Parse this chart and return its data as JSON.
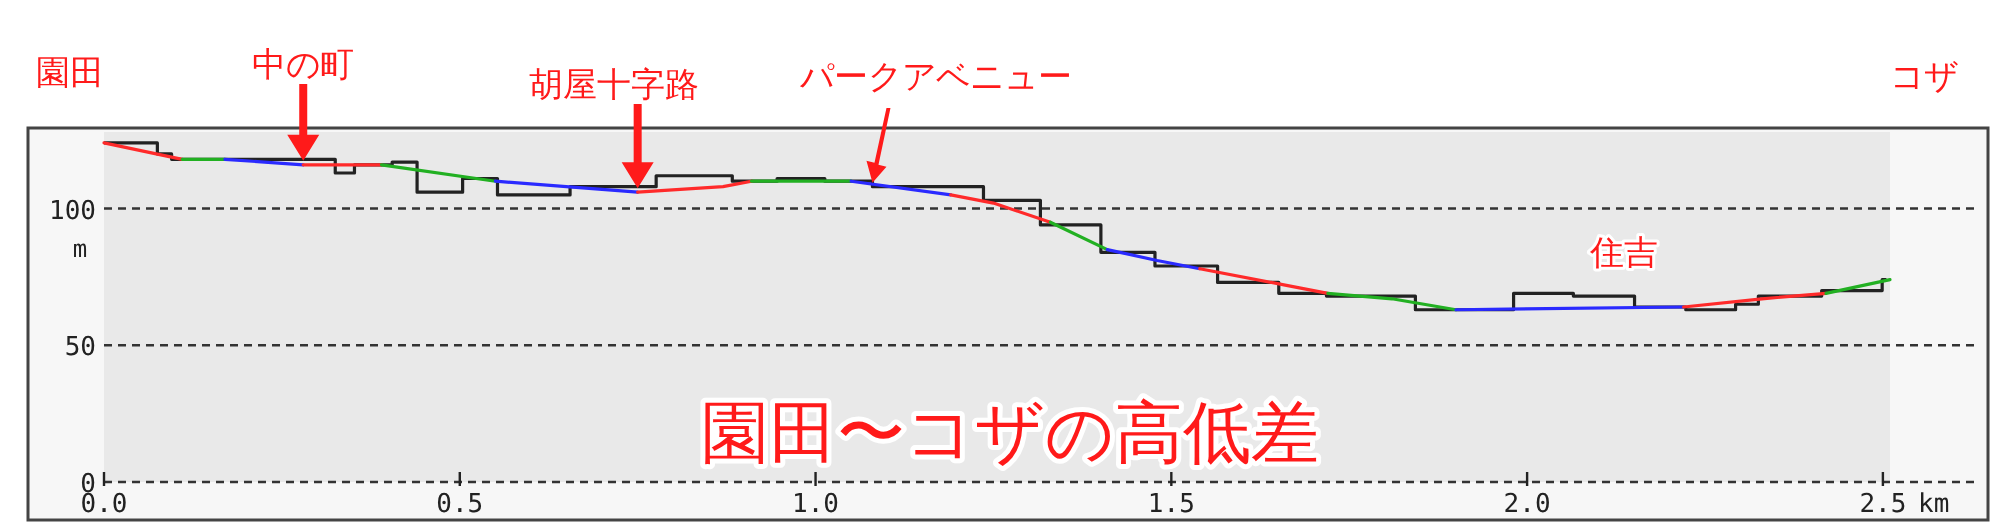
{
  "chart_data": {
    "type": "line",
    "title": "園田〜コザの高低差",
    "xlabel": "km",
    "ylabel": "m",
    "xlim": [
      0,
      2.51
    ],
    "ylim": [
      0,
      128
    ],
    "xticks": [
      {
        "value": 0,
        "label": "0.0"
      },
      {
        "value": 0.5,
        "label": "0.5"
      },
      {
        "value": 1,
        "label": "1.0"
      },
      {
        "value": 1.5,
        "label": "1.5"
      },
      {
        "value": 2,
        "label": "2.0"
      },
      {
        "value": 2.5,
        "label": "2.5"
      }
    ],
    "yticks": [
      0,
      50,
      100
    ],
    "grid": "y",
    "annotations": [
      "園田",
      {
        "text": "中の町",
        "x": 0.28,
        "y": 116
      },
      {
        "text": "胡屋十字路",
        "x": 0.75,
        "y": 106
      },
      {
        "text": "パークアベニュー",
        "x": 1.08,
        "y": 108
      },
      "住吉",
      "コザ"
    ],
    "series": [
      {
        "type": "step",
        "color": "#222222",
        "x": [
          0,
          0.075,
          0.095,
          0.325,
          0.352,
          0.405,
          0.44,
          0.504,
          0.553,
          0.655,
          0.776,
          0.883,
          0.946,
          1.013,
          1.08,
          1.236,
          1.316,
          1.401,
          1.477,
          1.565,
          1.651,
          1.718,
          1.843,
          1.981,
          2.065,
          2.151,
          2.223,
          2.293,
          2.325,
          2.414,
          2.499,
          2.505
        ],
        "values": [
          124,
          120,
          118,
          113,
          116,
          117,
          106,
          111,
          105,
          108,
          112,
          110,
          111,
          110,
          108,
          103,
          94,
          84,
          79,
          73,
          69,
          68,
          63,
          69,
          68,
          64,
          63,
          65,
          68,
          70,
          74,
          74
        ]
      },
      {
        "color": "#ff2a2a",
        "x": [
          0,
          0.11
        ],
        "values": [
          124,
          118
        ]
      },
      {
        "color": "#22b022",
        "x": [
          0.11,
          0.17
        ],
        "values": [
          118,
          118
        ]
      },
      {
        "color": "#2a2aff",
        "x": [
          0.17,
          0.28
        ],
        "values": [
          118,
          116
        ]
      },
      {
        "color": "#ff2a2a",
        "x": [
          0.28,
          0.39
        ],
        "values": [
          116,
          116
        ]
      },
      {
        "color": "#22b022",
        "x": [
          0.39,
          0.55
        ],
        "values": [
          116,
          110
        ]
      },
      {
        "color": "#2a2aff",
        "x": [
          0.55,
          0.75
        ],
        "values": [
          110,
          106
        ]
      },
      {
        "color": "#ff2a2a",
        "x": [
          0.75,
          0.87,
          0.91
        ],
        "values": [
          106,
          108,
          110
        ]
      },
      {
        "color": "#22b022",
        "x": [
          0.91,
          1.05
        ],
        "values": [
          110,
          110
        ]
      },
      {
        "color": "#2a2aff",
        "x": [
          1.05,
          1.19
        ],
        "values": [
          110,
          105
        ]
      },
      {
        "color": "#ff2a2a",
        "x": [
          1.19,
          1.25,
          1.33
        ],
        "values": [
          105,
          102,
          95
        ]
      },
      {
        "color": "#22b022",
        "x": [
          1.33,
          1.41
        ],
        "values": [
          95,
          85
        ]
      },
      {
        "color": "#2a2aff",
        "x": [
          1.41,
          1.48,
          1.54
        ],
        "values": [
          85,
          81,
          78
        ]
      },
      {
        "color": "#ff2a2a",
        "x": [
          1.54,
          1.66,
          1.72
        ],
        "values": [
          78,
          72,
          69
        ]
      },
      {
        "color": "#22b022",
        "x": [
          1.72,
          1.81,
          1.9
        ],
        "values": [
          69,
          67,
          63
        ]
      },
      {
        "color": "#2a2aff",
        "x": [
          1.9,
          2.22
        ],
        "values": [
          63,
          64
        ]
      },
      {
        "color": "#ff2a2a",
        "x": [
          2.22,
          2.33,
          2.42
        ],
        "values": [
          64,
          67,
          69
        ]
      },
      {
        "color": "#22b022",
        "x": [
          2.42,
          2.51
        ],
        "values": [
          69,
          74
        ]
      }
    ]
  }
}
